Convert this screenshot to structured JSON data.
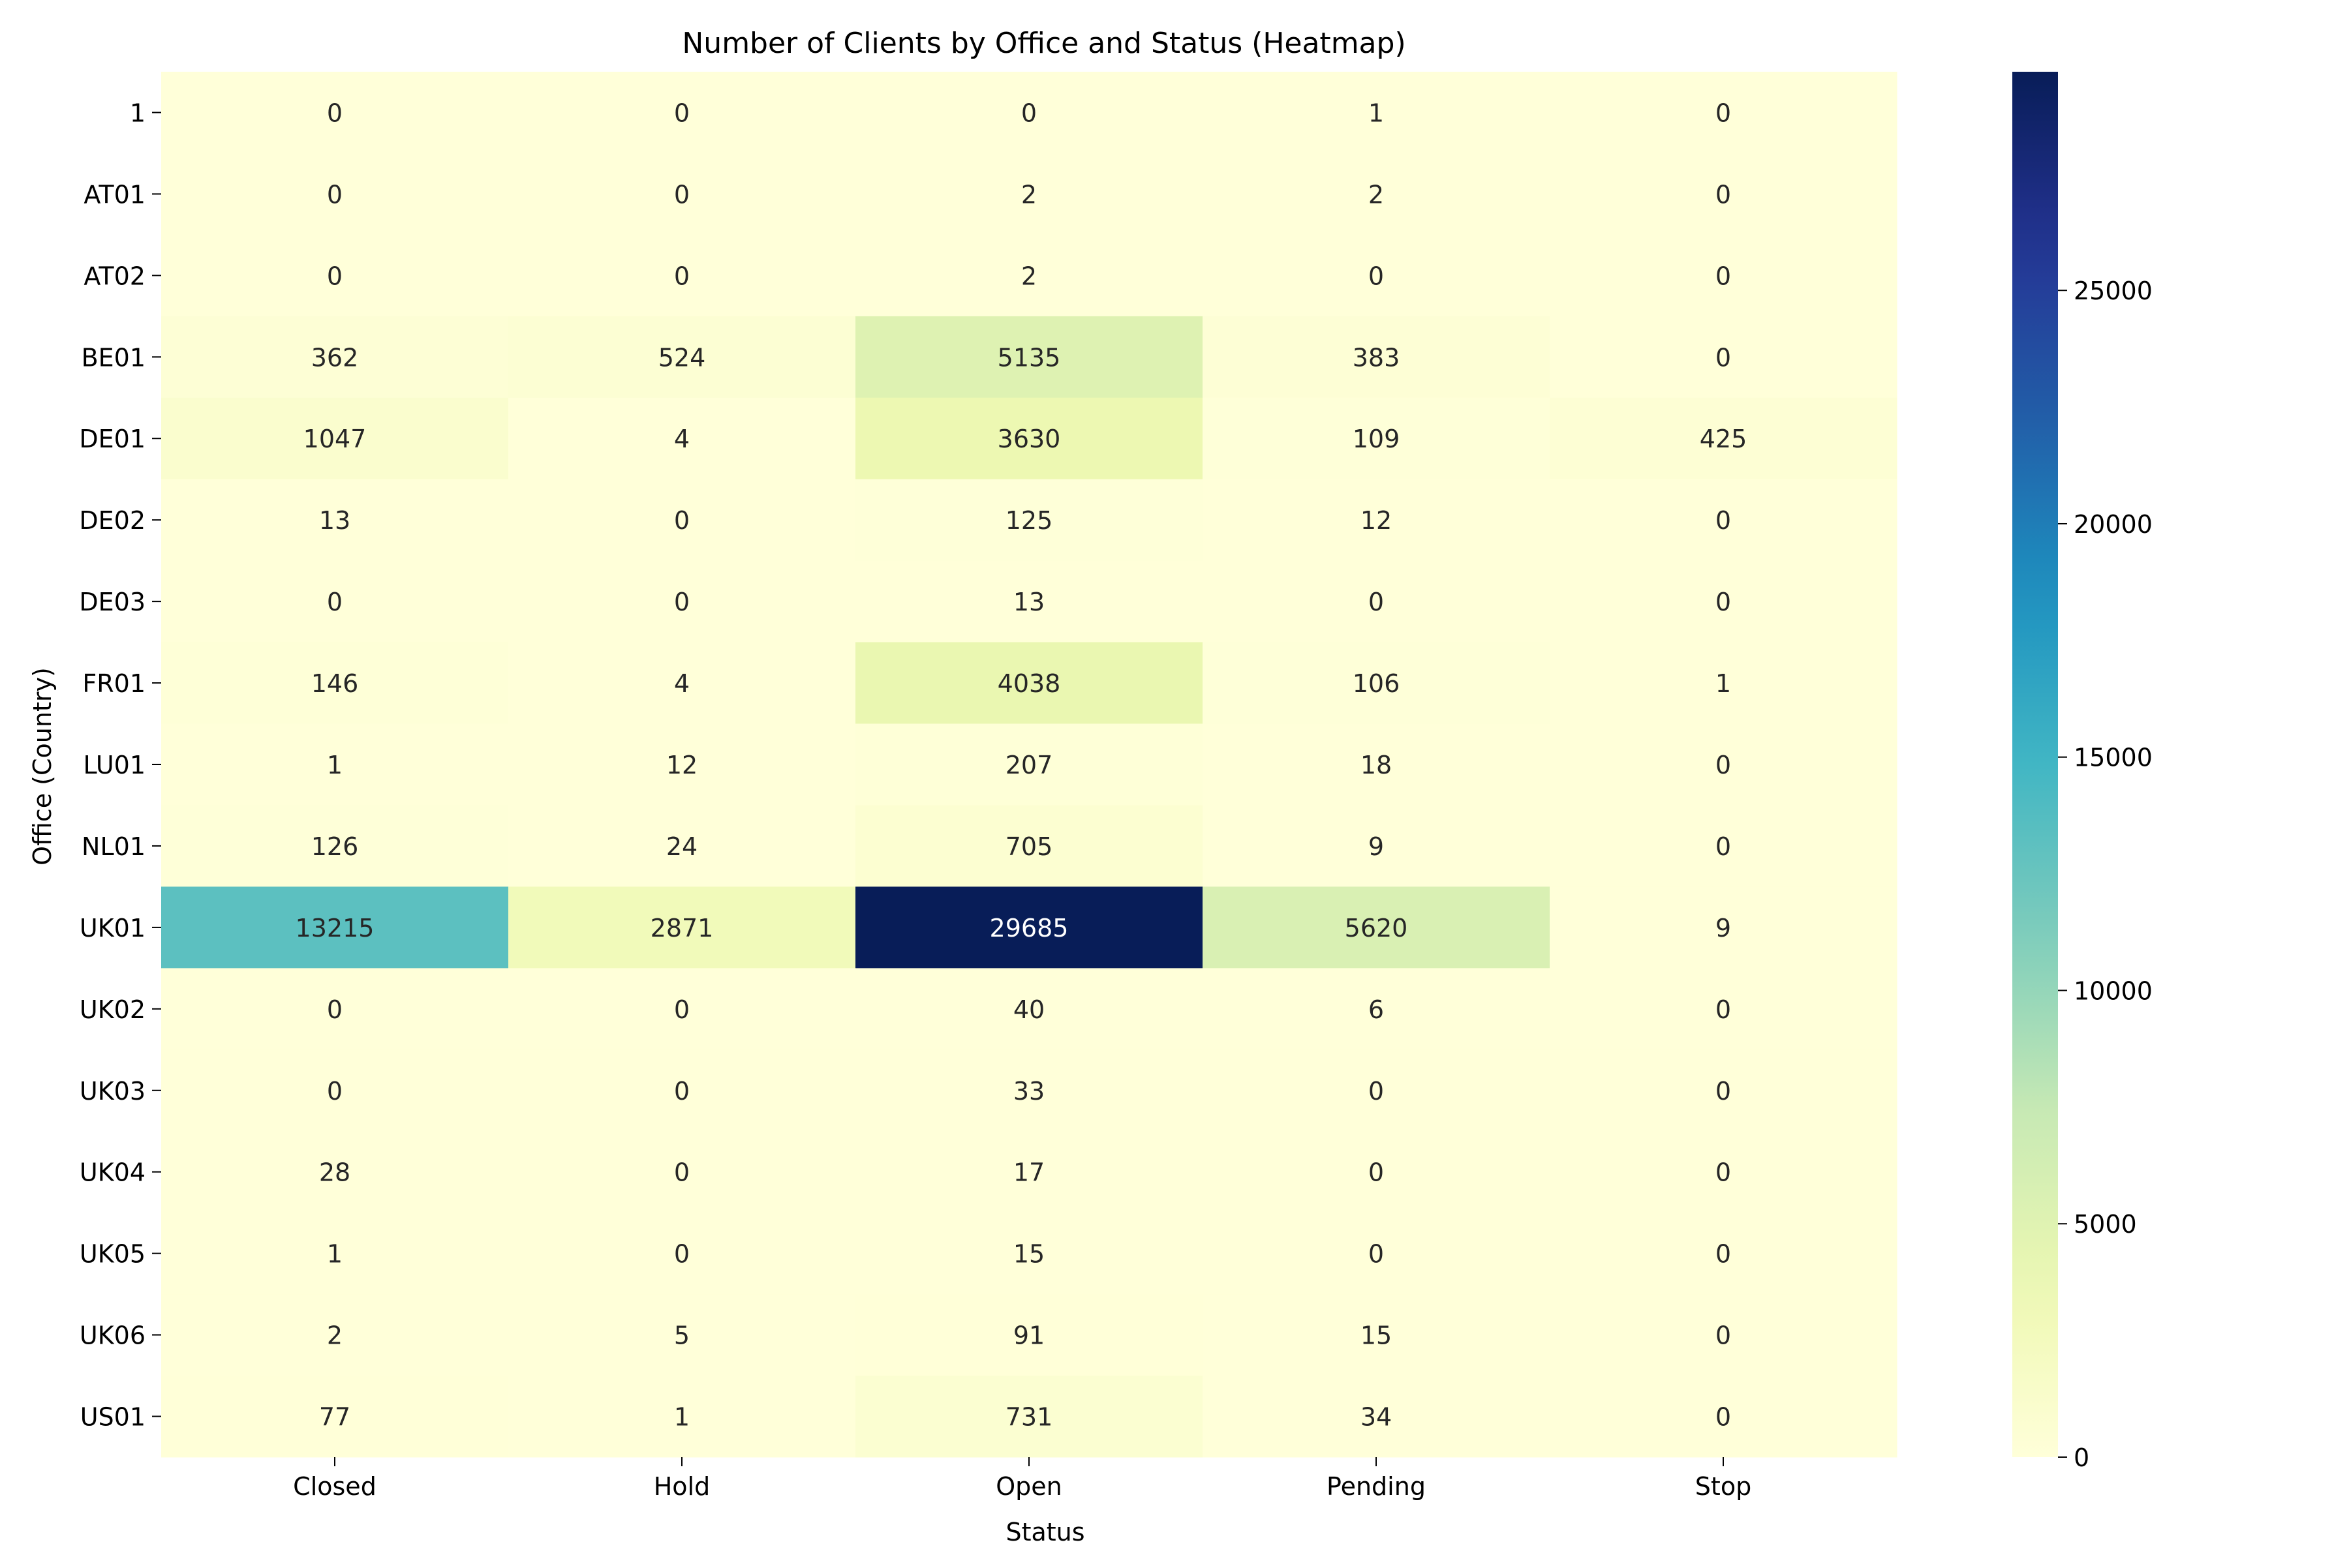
{
  "chart_data": {
    "type": "heatmap",
    "title": "Number of Clients by Office and Status (Heatmap)",
    "xlabel": "Status",
    "ylabel": "Office (Country)",
    "x_categories": [
      "Closed",
      "Hold",
      "Open",
      "Pending",
      "Stop"
    ],
    "y_categories": [
      "1",
      "AT01",
      "AT02",
      "BE01",
      "DE01",
      "DE02",
      "DE03",
      "FR01",
      "LU01",
      "NL01",
      "UK01",
      "UK02",
      "UK03",
      "UK04",
      "UK05",
      "UK06",
      "US01"
    ],
    "values": [
      [
        0,
        0,
        0,
        1,
        0
      ],
      [
        0,
        0,
        2,
        2,
        0
      ],
      [
        0,
        0,
        2,
        0,
        0
      ],
      [
        362,
        524,
        5135,
        383,
        0
      ],
      [
        1047,
        4,
        3630,
        109,
        425
      ],
      [
        13,
        0,
        125,
        12,
        0
      ],
      [
        0,
        0,
        13,
        0,
        0
      ],
      [
        146,
        4,
        4038,
        106,
        1
      ],
      [
        1,
        12,
        207,
        18,
        0
      ],
      [
        126,
        24,
        705,
        9,
        0
      ],
      [
        13215,
        2871,
        29685,
        5620,
        9
      ],
      [
        0,
        0,
        40,
        6,
        0
      ],
      [
        0,
        0,
        33,
        0,
        0
      ],
      [
        28,
        0,
        17,
        0,
        0
      ],
      [
        1,
        0,
        15,
        0,
        0
      ],
      [
        2,
        5,
        91,
        15,
        0
      ],
      [
        77,
        1,
        731,
        34,
        0
      ]
    ],
    "colormap": "YlGnBu",
    "value_range": [
      0,
      29685
    ],
    "colorbar": {
      "ticks": [
        0,
        5000,
        10000,
        15000,
        20000,
        25000
      ],
      "tick_labels": [
        "0",
        "5000",
        "10000",
        "15000",
        "20000",
        "25000"
      ]
    },
    "grid": false,
    "annotate_cells": true
  }
}
